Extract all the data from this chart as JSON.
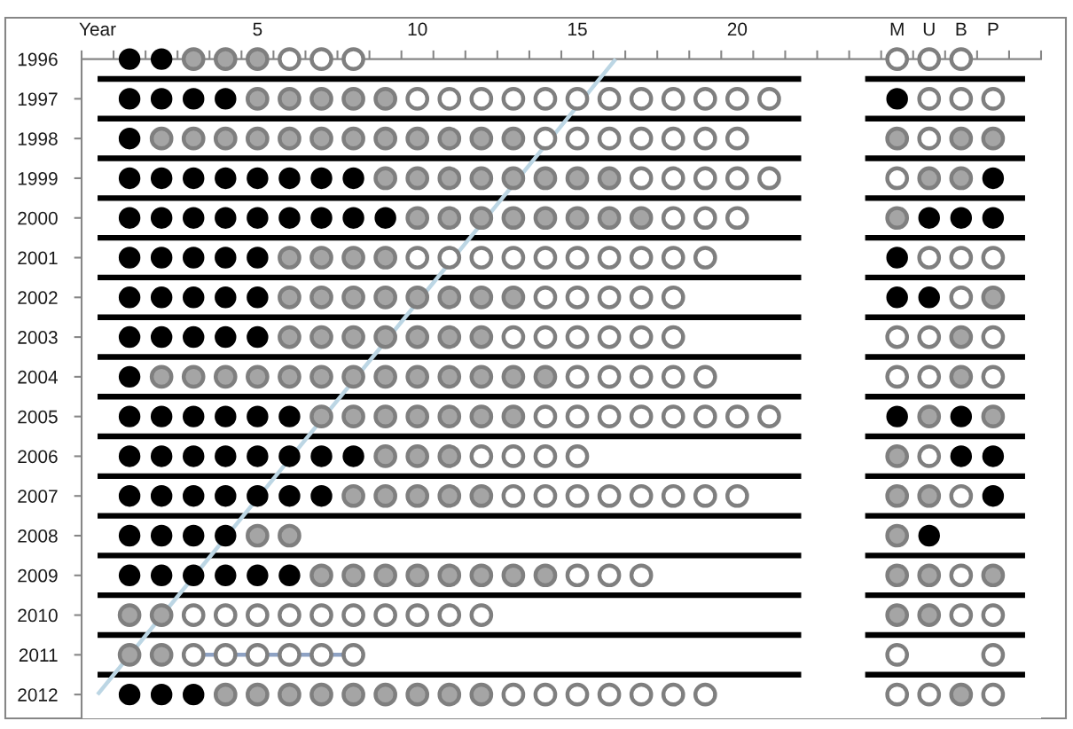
{
  "chart_data": {
    "type": "scatter",
    "marker": "circle",
    "line_style": "solid",
    "xlim": [
      -0.5,
      29.5
    ],
    "ylim": [
      2012.6,
      1996
    ],
    "xticks": [
      {
        "value": -0.5,
        "label": null
      },
      {
        "value": 0,
        "label": "Year"
      },
      {
        "value": 0.5,
        "label": null
      },
      {
        "value": 1.5,
        "label": null
      },
      {
        "value": 2.5,
        "label": null
      },
      {
        "value": 3.5,
        "label": null
      },
      {
        "value": 4.5,
        "label": null
      },
      5,
      {
        "value": 5.5,
        "label": null
      },
      {
        "value": 6.5,
        "label": null
      },
      {
        "value": 7.5,
        "label": null
      },
      {
        "value": 8.5,
        "label": null
      },
      {
        "value": 9.5,
        "label": null
      },
      10,
      {
        "value": 10.5,
        "label": null
      },
      {
        "value": 11.5,
        "label": null
      },
      {
        "value": 12.5,
        "label": null
      },
      {
        "value": 13.5,
        "label": null
      },
      {
        "value": 14.5,
        "label": null
      },
      15,
      {
        "value": 15.5,
        "label": null
      },
      {
        "value": 16.5,
        "label": null
      },
      {
        "value": 17.5,
        "label": null
      },
      {
        "value": 18.5,
        "label": null
      },
      {
        "value": 19.5,
        "label": null
      },
      20,
      {
        "value": 20.5,
        "label": null
      },
      {
        "value": 21.5,
        "label": null
      },
      {
        "value": 22.5,
        "label": null
      },
      {
        "value": 23.5,
        "label": null
      },
      {
        "value": 24.5,
        "label": null
      },
      {
        "value": 25,
        "label": "M"
      },
      {
        "value": 25.5,
        "label": null
      },
      {
        "value": 26,
        "label": "U"
      },
      {
        "value": 26.5,
        "label": null
      },
      {
        "value": 27,
        "label": "B"
      },
      {
        "value": 27.5,
        "label": null
      },
      {
        "value": 28,
        "label": "P"
      },
      {
        "value": 28.5,
        "label": null
      },
      {
        "value": 29.5,
        "label": null
      }
    ],
    "yticks": [
      1996,
      1997,
      1998,
      1999,
      2000,
      2001,
      2002,
      2003,
      2004,
      2005,
      2006,
      2007,
      2008,
      2009,
      2010,
      2011,
      2012
    ],
    "series": [
      {
        "color": "#000000",
        "x": [
          1,
          2,
          1,
          2,
          3,
          4,
          25,
          1,
          1,
          2,
          3,
          4,
          5,
          6,
          7,
          8,
          28,
          1,
          2,
          3,
          4,
          5,
          6,
          7,
          8,
          9,
          26,
          27,
          28,
          1,
          2,
          3,
          4,
          5,
          25,
          1,
          2,
          3,
          4,
          5,
          25,
          26,
          1,
          2,
          3,
          4,
          5,
          1,
          1,
          2,
          3,
          4,
          5,
          6,
          25,
          27,
          1,
          2,
          3,
          4,
          5,
          6,
          7,
          8,
          27,
          28,
          1,
          2,
          3,
          4,
          5,
          6,
          7,
          28,
          1,
          2,
          3,
          4,
          26,
          1,
          2,
          3,
          4,
          5,
          6,
          1,
          2,
          3
        ],
        "values": [
          1996,
          1996,
          1997,
          1997,
          1997,
          1997,
          1997,
          1998,
          1999,
          1999,
          1999,
          1999,
          1999,
          1999,
          1999,
          1999,
          1999,
          2000,
          2000,
          2000,
          2000,
          2000,
          2000,
          2000,
          2000,
          2000,
          2000,
          2000,
          2000,
          2001,
          2001,
          2001,
          2001,
          2001,
          2001,
          2002,
          2002,
          2002,
          2002,
          2002,
          2002,
          2002,
          2003,
          2003,
          2003,
          2003,
          2003,
          2004,
          2005,
          2005,
          2005,
          2005,
          2005,
          2005,
          2005,
          2005,
          2006,
          2006,
          2006,
          2006,
          2006,
          2006,
          2006,
          2006,
          2006,
          2006,
          2007,
          2007,
          2007,
          2007,
          2007,
          2007,
          2007,
          2007,
          2008,
          2008,
          2008,
          2008,
          2008,
          2009,
          2009,
          2009,
          2009,
          2009,
          2009,
          2012,
          2012,
          2012
        ]
      },
      {
        "color": "#a5a5a5",
        "x": [
          3,
          4,
          5,
          5,
          6,
          7,
          8,
          9,
          2,
          3,
          4,
          5,
          6,
          7,
          8,
          9,
          10,
          11,
          12,
          13,
          25,
          27,
          28,
          9,
          10,
          11,
          12,
          13,
          14,
          15,
          16,
          26,
          27,
          10,
          11,
          12,
          13,
          14,
          15,
          16,
          17,
          25,
          6,
          7,
          8,
          9,
          6,
          7,
          8,
          9,
          10,
          11,
          12,
          13,
          28,
          6,
          7,
          8,
          9,
          10,
          11,
          12,
          27,
          2,
          3,
          4,
          5,
          6,
          7,
          8,
          9,
          10,
          11,
          12,
          13,
          14,
          27,
          7,
          8,
          9,
          10,
          11,
          12,
          13,
          26,
          28,
          9,
          10,
          11,
          25,
          8,
          9,
          10,
          11,
          12,
          25,
          26,
          5,
          6,
          25,
          7,
          8,
          9,
          10,
          11,
          12,
          13,
          14,
          25,
          26,
          28,
          1,
          2,
          25,
          26,
          1,
          2,
          4,
          5,
          6,
          7,
          8,
          9,
          10,
          11,
          12,
          27
        ],
        "values": [
          1996,
          1996,
          1996,
          1997,
          1997,
          1997,
          1997,
          1997,
          1998,
          1998,
          1998,
          1998,
          1998,
          1998,
          1998,
          1998,
          1998,
          1998,
          1998,
          1998,
          1998,
          1998,
          1998,
          1999,
          1999,
          1999,
          1999,
          1999,
          1999,
          1999,
          1999,
          1999,
          1999,
          2000,
          2000,
          2000,
          2000,
          2000,
          2000,
          2000,
          2000,
          2000,
          2001,
          2001,
          2001,
          2001,
          2002,
          2002,
          2002,
          2002,
          2002,
          2002,
          2002,
          2002,
          2002,
          2003,
          2003,
          2003,
          2003,
          2003,
          2003,
          2003,
          2003,
          2004,
          2004,
          2004,
          2004,
          2004,
          2004,
          2004,
          2004,
          2004,
          2004,
          2004,
          2004,
          2004,
          2004,
          2005,
          2005,
          2005,
          2005,
          2005,
          2005,
          2005,
          2005,
          2005,
          2006,
          2006,
          2006,
          2006,
          2007,
          2007,
          2007,
          2007,
          2007,
          2007,
          2007,
          2008,
          2008,
          2008,
          2009,
          2009,
          2009,
          2009,
          2009,
          2009,
          2009,
          2009,
          2009,
          2009,
          2009,
          2010,
          2010,
          2010,
          2010,
          2011,
          2011,
          2012,
          2012,
          2012,
          2012,
          2012,
          2012,
          2012,
          2012,
          2012,
          2012
        ]
      },
      {
        "color": "#ffffff",
        "x": [
          6,
          7,
          8,
          25,
          26,
          27,
          10,
          11,
          12,
          13,
          14,
          15,
          16,
          17,
          18,
          19,
          20,
          21,
          26,
          27,
          28,
          14,
          15,
          16,
          17,
          18,
          19,
          20,
          26,
          17,
          18,
          19,
          20,
          21,
          25,
          18,
          19,
          20,
          10,
          11,
          12,
          13,
          14,
          15,
          16,
          17,
          18,
          19,
          26,
          27,
          28,
          14,
          15,
          16,
          17,
          18,
          27,
          13,
          14,
          15,
          16,
          17,
          18,
          25,
          26,
          28,
          15,
          16,
          17,
          18,
          19,
          25,
          26,
          28,
          14,
          15,
          16,
          17,
          18,
          19,
          20,
          21,
          12,
          13,
          14,
          15,
          26,
          13,
          14,
          15,
          16,
          17,
          18,
          19,
          20,
          27,
          15,
          16,
          17,
          27,
          3,
          4,
          5,
          6,
          7,
          8,
          9,
          10,
          11,
          12,
          27,
          28,
          3,
          4,
          5,
          6,
          7,
          8,
          25,
          28,
          13,
          14,
          15,
          16,
          17,
          18,
          19,
          25,
          26,
          28
        ],
        "values": [
          1996,
          1996,
          1996,
          1996,
          1996,
          1996,
          1997,
          1997,
          1997,
          1997,
          1997,
          1997,
          1997,
          1997,
          1997,
          1997,
          1997,
          1997,
          1997,
          1997,
          1997,
          1998,
          1998,
          1998,
          1998,
          1998,
          1998,
          1998,
          1998,
          1999,
          1999,
          1999,
          1999,
          1999,
          1999,
          2000,
          2000,
          2000,
          2001,
          2001,
          2001,
          2001,
          2001,
          2001,
          2001,
          2001,
          2001,
          2001,
          2001,
          2001,
          2001,
          2002,
          2002,
          2002,
          2002,
          2002,
          2002,
          2003,
          2003,
          2003,
          2003,
          2003,
          2003,
          2003,
          2003,
          2003,
          2004,
          2004,
          2004,
          2004,
          2004,
          2004,
          2004,
          2004,
          2005,
          2005,
          2005,
          2005,
          2005,
          2005,
          2005,
          2005,
          2006,
          2006,
          2006,
          2006,
          2006,
          2007,
          2007,
          2007,
          2007,
          2007,
          2007,
          2007,
          2007,
          2007,
          2009,
          2009,
          2009,
          2009,
          2010,
          2010,
          2010,
          2010,
          2010,
          2010,
          2010,
          2010,
          2010,
          2010,
          2010,
          2010,
          2011,
          2011,
          2011,
          2011,
          2011,
          2011,
          2011,
          2011,
          2012,
          2012,
          2012,
          2012,
          2012,
          2012,
          2012,
          2012,
          2012,
          2012
        ]
      },
      {
        "type": "line",
        "marker": "none",
        "color": "#bcd6e4",
        "x": [
          0,
          16.2
        ],
        "values": [
          2012,
          1996
        ]
      },
      {
        "type": "line",
        "marker": "none",
        "color": "#8ea2c4",
        "x": [
          3,
          8
        ],
        "values": [
          2011,
          2011
        ]
      },
      {
        "type": "line",
        "marker": "none",
        "color": "#000000",
        "x": [
          0,
          22
        ],
        "values": [
          1996.5,
          1996.5
        ]
      },
      {
        "type": "line",
        "marker": "none",
        "color": "#000000",
        "x": [
          24,
          29
        ],
        "values": [
          1996.5,
          1996.5
        ]
      },
      {
        "type": "line",
        "marker": "none",
        "color": "#000000",
        "x": [
          0,
          22
        ],
        "values": [
          1997.5,
          1997.5
        ]
      },
      {
        "type": "line",
        "marker": "none",
        "color": "#000000",
        "x": [
          24,
          29
        ],
        "values": [
          1997.5,
          1997.5
        ]
      },
      {
        "type": "line",
        "marker": "none",
        "color": "#000000",
        "x": [
          0,
          22
        ],
        "values": [
          1998.5,
          1998.5
        ]
      },
      {
        "type": "line",
        "marker": "none",
        "color": "#000000",
        "x": [
          24,
          29
        ],
        "values": [
          1998.5,
          1998.5
        ]
      },
      {
        "type": "line",
        "marker": "none",
        "color": "#000000",
        "x": [
          0,
          22
        ],
        "values": [
          1999.5,
          1999.5
        ]
      },
      {
        "type": "line",
        "marker": "none",
        "color": "#000000",
        "x": [
          24,
          29
        ],
        "values": [
          1999.5,
          1999.5
        ]
      },
      {
        "type": "line",
        "marker": "none",
        "color": "#000000",
        "x": [
          0,
          22
        ],
        "values": [
          2000.5,
          2000.5
        ]
      },
      {
        "type": "line",
        "marker": "none",
        "color": "#000000",
        "x": [
          24,
          29
        ],
        "values": [
          2000.5,
          2000.5
        ]
      },
      {
        "type": "line",
        "marker": "none",
        "color": "#000000",
        "x": [
          0,
          22
        ],
        "values": [
          2001.5,
          2001.5
        ]
      },
      {
        "type": "line",
        "marker": "none",
        "color": "#000000",
        "x": [
          24,
          29
        ],
        "values": [
          2001.5,
          2001.5
        ]
      },
      {
        "type": "line",
        "marker": "none",
        "color": "#000000",
        "x": [
          0,
          22
        ],
        "values": [
          2002.5,
          2002.5
        ]
      },
      {
        "type": "line",
        "marker": "none",
        "color": "#000000",
        "x": [
          24,
          29
        ],
        "values": [
          2002.5,
          2002.5
        ]
      },
      {
        "type": "line",
        "marker": "none",
        "color": "#000000",
        "x": [
          0,
          22
        ],
        "values": [
          2003.5,
          2003.5
        ]
      },
      {
        "type": "line",
        "marker": "none",
        "color": "#000000",
        "x": [
          24,
          29
        ],
        "values": [
          2003.5,
          2003.5
        ]
      },
      {
        "type": "line",
        "marker": "none",
        "color": "#000000",
        "x": [
          0,
          22
        ],
        "values": [
          2004.5,
          2004.5
        ]
      },
      {
        "type": "line",
        "marker": "none",
        "color": "#000000",
        "x": [
          24,
          29
        ],
        "values": [
          2004.5,
          2004.5
        ]
      },
      {
        "type": "line",
        "marker": "none",
        "color": "#000000",
        "x": [
          0,
          22
        ],
        "values": [
          2005.5,
          2005.5
        ]
      },
      {
        "type": "line",
        "marker": "none",
        "color": "#000000",
        "x": [
          24,
          29
        ],
        "values": [
          2005.5,
          2005.5
        ]
      },
      {
        "type": "line",
        "marker": "none",
        "color": "#000000",
        "x": [
          0,
          22
        ],
        "values": [
          2006.5,
          2006.5
        ]
      },
      {
        "type": "line",
        "marker": "none",
        "color": "#000000",
        "x": [
          24,
          29
        ],
        "values": [
          2006.5,
          2006.5
        ]
      },
      {
        "type": "line",
        "marker": "none",
        "color": "#000000",
        "x": [
          0,
          22
        ],
        "values": [
          2007.5,
          2007.5
        ]
      },
      {
        "type": "line",
        "marker": "none",
        "color": "#000000",
        "x": [
          24,
          29
        ],
        "values": [
          2007.5,
          2007.5
        ]
      },
      {
        "type": "line",
        "marker": "none",
        "color": "#000000",
        "x": [
          0,
          22
        ],
        "values": [
          2008.5,
          2008.5
        ]
      },
      {
        "type": "line",
        "marker": "none",
        "color": "#000000",
        "x": [
          24,
          29
        ],
        "values": [
          2008.5,
          2008.5
        ]
      },
      {
        "type": "line",
        "marker": "none",
        "color": "#000000",
        "x": [
          0,
          22
        ],
        "values": [
          2009.5,
          2009.5
        ]
      },
      {
        "type": "line",
        "marker": "none",
        "color": "#000000",
        "x": [
          24,
          29
        ],
        "values": [
          2009.5,
          2009.5
        ]
      },
      {
        "type": "line",
        "marker": "none",
        "color": "#000000",
        "x": [
          0,
          22
        ],
        "values": [
          2010.5,
          2010.5
        ]
      },
      {
        "type": "line",
        "marker": "none",
        "color": "#000000",
        "x": [
          24,
          29
        ],
        "values": [
          2010.5,
          2010.5
        ]
      },
      {
        "type": "line",
        "marker": "none",
        "color": "#000000",
        "x": [
          0,
          22
        ],
        "values": [
          2011.5,
          2011.5
        ]
      },
      {
        "type": "line",
        "marker": "none",
        "color": "#000000",
        "x": [
          24,
          29
        ],
        "values": [
          2011.5,
          2011.5
        ]
      }
    ]
  }
}
